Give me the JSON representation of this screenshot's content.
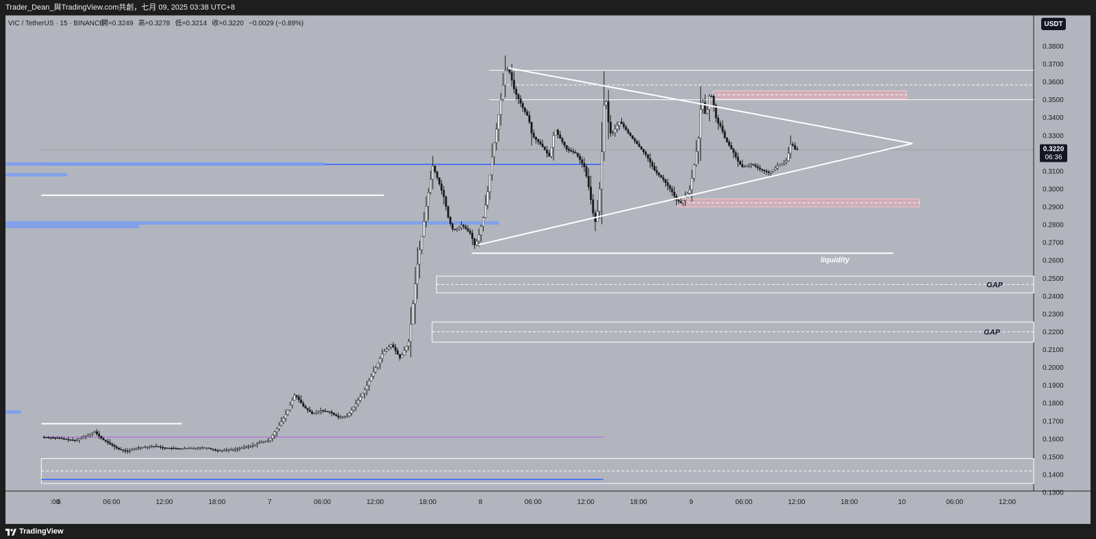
{
  "header": {
    "attribution": "Trader_Dean_與TradingView.com共創，七月 09, 2025 03:38 UTC+8"
  },
  "footer": {
    "brand": "TradingView"
  },
  "colors": {
    "background": "#b2b5be",
    "frame": "#1e1e1e",
    "candle_up": "#ffffff",
    "candle_down": "#1a1a1a",
    "drawing_white": "#ffffff",
    "drawing_blue": "#2962ff",
    "volume_profile_blue": "#7b9ef0",
    "zone_pink": "#e9a8b0"
  },
  "chart_data": {
    "type": "candlestick",
    "symbol_line": "VIC / TetherUS · 15 · BINANCE",
    "ohlc_labels": [
      "開=0.3249",
      "高=0.3278",
      "低=0.3214",
      "收=0.3220",
      "−0.0029 (−0.89%)"
    ],
    "currency_badge": "USDT",
    "last_price_label": "0.3220",
    "countdown_label": "06:36",
    "ylim": [
      0.135,
      0.385
    ],
    "price_ticks": [
      "0.3800",
      "0.3700",
      "0.3600",
      "0.3500",
      "0.3400",
      "0.3300",
      "0.3200",
      "0.3100",
      "0.3000",
      "0.2900",
      "0.2800",
      "0.2700",
      "0.2600",
      "0.2500",
      "0.2400",
      "0.2300",
      "0.2200",
      "0.2100",
      "0.2000",
      "0.1900",
      "0.1800",
      "0.1700",
      "0.1600",
      "0.1500",
      "0.1400",
      "0.1300"
    ],
    "time_ticks": [
      {
        "label": ":00",
        "t": -1
      },
      {
        "label": "6",
        "t": 0
      },
      {
        "label": "06:00",
        "t": 6
      },
      {
        "label": "12:00",
        "t": 12
      },
      {
        "label": "18:00",
        "t": 18
      },
      {
        "label": "7",
        "t": 24
      },
      {
        "label": "06:00",
        "t": 30
      },
      {
        "label": "12:00",
        "t": 36
      },
      {
        "label": "18:00",
        "t": 42
      },
      {
        "label": "8",
        "t": 48
      },
      {
        "label": "06:00",
        "t": 54
      },
      {
        "label": "12:00",
        "t": 60
      },
      {
        "label": "18:00",
        "t": 66
      },
      {
        "label": "9",
        "t": 72
      },
      {
        "label": "06:00",
        "t": 78
      },
      {
        "label": "12:00",
        "t": 84
      },
      {
        "label": "18:00",
        "t": 90
      },
      {
        "label": "10",
        "t": 96
      },
      {
        "label": "06:00",
        "t": 102
      },
      {
        "label": "12:00",
        "t": 108
      }
    ],
    "price_path": [
      [
        -1.8,
        0.161
      ],
      [
        0,
        0.1605
      ],
      [
        2,
        0.159
      ],
      [
        3.5,
        0.1625
      ],
      [
        4.2,
        0.164
      ],
      [
        5,
        0.16
      ],
      [
        6,
        0.157
      ],
      [
        7,
        0.154
      ],
      [
        8,
        0.153
      ],
      [
        9,
        0.155
      ],
      [
        11,
        0.156
      ],
      [
        12,
        0.155
      ],
      [
        14,
        0.1545
      ],
      [
        16,
        0.155
      ],
      [
        17,
        0.155
      ],
      [
        18,
        0.1535
      ],
      [
        20,
        0.154
      ],
      [
        22,
        0.156
      ],
      [
        23,
        0.158
      ],
      [
        24,
        0.159
      ],
      [
        25,
        0.166
      ],
      [
        26,
        0.174
      ],
      [
        27,
        0.185
      ],
      [
        28,
        0.178
      ],
      [
        29,
        0.174
      ],
      [
        30,
        0.176
      ],
      [
        31,
        0.175
      ],
      [
        32,
        0.172
      ],
      [
        33,
        0.173
      ],
      [
        34,
        0.18
      ],
      [
        35,
        0.188
      ],
      [
        36,
        0.198
      ],
      [
        37,
        0.208
      ],
      [
        38,
        0.213
      ],
      [
        39,
        0.205
      ],
      [
        40,
        0.215
      ],
      [
        40.5,
        0.238
      ],
      [
        41,
        0.26
      ],
      [
        41.5,
        0.275
      ],
      [
        42,
        0.292
      ],
      [
        42.7,
        0.313
      ],
      [
        43.3,
        0.305
      ],
      [
        44,
        0.295
      ],
      [
        44.5,
        0.283
      ],
      [
        45,
        0.277
      ],
      [
        45.6,
        0.278
      ],
      [
        46,
        0.28
      ],
      [
        47,
        0.275
      ],
      [
        47.5,
        0.268
      ],
      [
        48,
        0.275
      ],
      [
        48.5,
        0.285
      ],
      [
        49,
        0.3
      ],
      [
        49.5,
        0.32
      ],
      [
        50,
        0.335
      ],
      [
        50.6,
        0.355
      ],
      [
        51,
        0.368
      ],
      [
        51.5,
        0.365
      ],
      [
        52,
        0.355
      ],
      [
        53,
        0.345
      ],
      [
        53.6,
        0.34
      ],
      [
        54,
        0.33
      ],
      [
        55,
        0.325
      ],
      [
        56,
        0.318
      ],
      [
        56.6,
        0.334
      ],
      [
        57,
        0.33
      ],
      [
        58,
        0.322
      ],
      [
        59,
        0.32
      ],
      [
        60,
        0.312
      ],
      [
        60.5,
        0.3
      ],
      [
        61,
        0.285
      ],
      [
        61.3,
        0.28
      ],
      [
        61.7,
        0.3
      ],
      [
        62,
        0.325
      ],
      [
        62.3,
        0.358
      ],
      [
        62.6,
        0.34
      ],
      [
        63,
        0.33
      ],
      [
        64,
        0.338
      ],
      [
        65,
        0.331
      ],
      [
        66,
        0.325
      ],
      [
        67,
        0.319
      ],
      [
        68,
        0.31
      ],
      [
        69,
        0.305
      ],
      [
        70,
        0.298
      ],
      [
        70.4,
        0.294
      ],
      [
        71,
        0.292
      ],
      [
        72,
        0.3
      ],
      [
        72.5,
        0.315
      ],
      [
        73,
        0.33
      ],
      [
        73.3,
        0.352
      ],
      [
        73.8,
        0.34
      ],
      [
        74.3,
        0.355
      ],
      [
        74.8,
        0.345
      ],
      [
        75,
        0.338
      ],
      [
        75.5,
        0.335
      ],
      [
        76,
        0.328
      ],
      [
        77,
        0.32
      ],
      [
        77.5,
        0.315
      ],
      [
        78,
        0.312
      ],
      [
        79,
        0.314
      ],
      [
        80,
        0.311
      ],
      [
        81,
        0.309
      ],
      [
        82,
        0.313
      ],
      [
        83,
        0.316
      ],
      [
        83.5,
        0.326
      ],
      [
        84,
        0.322
      ]
    ],
    "horizontal_levels": [
      {
        "price": 0.3665,
        "t1": 49,
        "t2": 130,
        "style": "box-edge"
      },
      {
        "price": 0.35,
        "t1": 49,
        "t2": 130,
        "style": "box-edge"
      },
      {
        "price": 0.3583,
        "t1": 51,
        "t2": 130,
        "style": "dashed"
      },
      {
        "price": 0.322,
        "t1": -2,
        "t2": 130,
        "style": "last-price"
      },
      {
        "price": 0.3138,
        "t1": -2,
        "t2": 62,
        "style": "blue"
      },
      {
        "price": 0.2965,
        "t1": -2,
        "t2": 37,
        "style": "white-level"
      },
      {
        "price": 0.264,
        "t1": 47,
        "t2": 95,
        "style": "white-level"
      },
      {
        "price": 0.1685,
        "t1": -2,
        "t2": 14,
        "style": "white-level"
      },
      {
        "price": 0.161,
        "t1": -2,
        "t2": 62,
        "style": "purple"
      },
      {
        "price": 0.1373,
        "t1": -2,
        "t2": 62,
        "style": "blue"
      }
    ],
    "zones": [
      {
        "label": "",
        "p_top": 0.355,
        "p_bot": 0.3505,
        "t1": 74.5,
        "t2": 96.5,
        "fill": "pink"
      },
      {
        "label": "",
        "p_top": 0.2945,
        "p_bot": 0.29,
        "t1": 70.5,
        "t2": 98,
        "fill": "pink"
      },
      {
        "label": "GAP",
        "p_top": 0.2512,
        "p_bot": 0.2418,
        "t1": 43,
        "t2": 130,
        "mid": 0.2465,
        "fill": "none"
      },
      {
        "label": "GAP",
        "p_top": 0.2255,
        "p_bot": 0.2142,
        "t1": 42.5,
        "t2": 130,
        "mid": 0.22,
        "fill": "none"
      },
      {
        "label": "",
        "p_top": 0.149,
        "p_bot": 0.135,
        "t1": -2,
        "t2": 130,
        "mid": 0.142,
        "fill": "none"
      }
    ],
    "triangle": {
      "upper": [
        [
          51.2,
          0.3678
        ],
        [
          97.2,
          0.3255
        ]
      ],
      "lower": [
        [
          47.8,
          0.2688
        ],
        [
          97.2,
          0.3255
        ]
      ]
    },
    "liquidity_label": "liquidity",
    "volume_profile": [
      {
        "price": 0.314,
        "len": 0.31
      },
      {
        "price": 0.308,
        "len": 0.06
      },
      {
        "price": 0.281,
        "len": 0.48
      },
      {
        "price": 0.279,
        "len": 0.13
      },
      {
        "price": 0.175,
        "len": 0.015
      }
    ]
  }
}
